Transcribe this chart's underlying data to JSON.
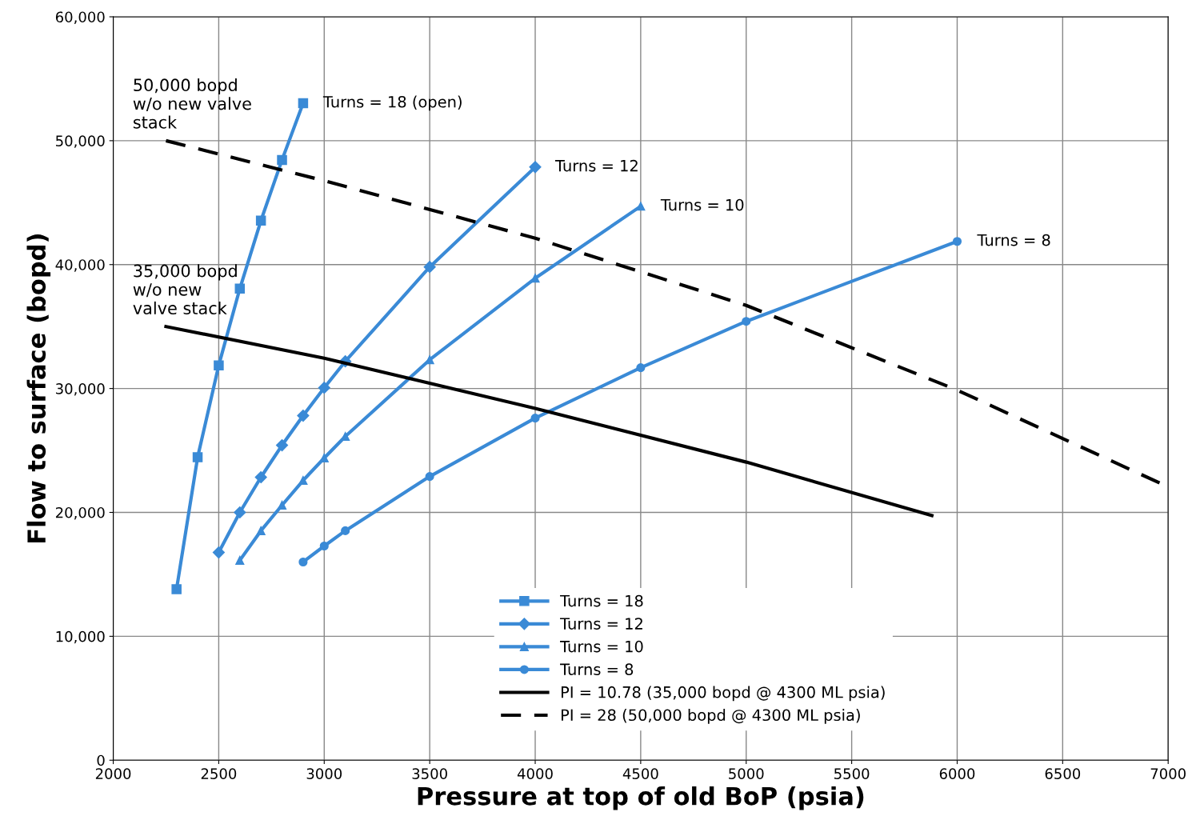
{
  "chart_data": {
    "type": "line",
    "xlabel": "Pressure at top of old BoP (psia)",
    "ylabel": "Flow to surface (bopd)",
    "xlim": [
      2000,
      7000
    ],
    "xticks": [
      2000,
      2500,
      3000,
      3500,
      4000,
      4500,
      5000,
      5500,
      6000,
      6500,
      7000
    ],
    "ylim": [
      0,
      60000
    ],
    "yticks": [
      0,
      {
        "value": 10000,
        "label": "10,000"
      },
      {
        "value": 20000,
        "label": "20,000"
      },
      {
        "value": 30000,
        "label": "30,000"
      },
      {
        "value": 40000,
        "label": "40,000"
      },
      {
        "value": 50000,
        "label": "50,000"
      },
      {
        "value": 60000,
        "label": "60,000"
      }
    ],
    "grid": true,
    "legend": "bottom",
    "series": [
      {
        "name": "Turns = 18",
        "color": "#3a8ad6",
        "marker": "square",
        "line_style": "solid",
        "x": [
          2300,
          2400,
          2500,
          2600,
          2700,
          2800,
          2900
        ],
        "values": [
          13800,
          24450,
          31870,
          38060,
          43550,
          48450,
          53030
        ]
      },
      {
        "name": "Turns = 12",
        "color": "#3a8ad6",
        "marker": "diamond",
        "line_style": "solid",
        "x": [
          2500,
          2600,
          2700,
          2800,
          2900,
          3000,
          3100,
          3500,
          4000
        ],
        "values": [
          16770,
          20000,
          22840,
          25420,
          27810,
          30060,
          32190,
          39810,
          47870
        ]
      },
      {
        "name": "Turns = 10",
        "color": "#3a8ad6",
        "marker": "triangle",
        "line_style": "solid",
        "x": [
          2600,
          2700,
          2800,
          2900,
          3000,
          3100,
          3500,
          4000,
          4500
        ],
        "values": [
          16130,
          18520,
          20580,
          22580,
          24390,
          26130,
          32320,
          38900,
          44710
        ]
      },
      {
        "name": "Turns = 8",
        "color": "#3a8ad6",
        "marker": "circle",
        "line_style": "solid",
        "x": [
          2900,
          3000,
          3100,
          3500,
          4000,
          4500,
          5000,
          6000
        ],
        "values": [
          16000,
          17290,
          18520,
          22900,
          27610,
          31680,
          35420,
          41870
        ]
      },
      {
        "name": "PI = 10.78 (35,000 bopd @ 4300 ML psia)",
        "color": "#000000",
        "marker": "none",
        "line_style": "solid",
        "x": [
          2250,
          3000,
          4000,
          5000,
          5880
        ],
        "values": [
          35000,
          32450,
          28400,
          24060,
          19740
        ]
      },
      {
        "name": "PI = 28 (50,000 bopd @ 4300 ML psia)",
        "color": "#000000",
        "marker": "none",
        "line_style": "dashed",
        "x": [
          2250,
          3000,
          4000,
          5000,
          6000,
          7000
        ],
        "values": [
          50000,
          46770,
          42130,
          36710,
          29870,
          22060
        ]
      }
    ],
    "annotations": [
      {
        "text": "50,000 bopd\nw/o new valve\nstack",
        "x": 2250,
        "y": 50000
      },
      {
        "text": "35,000 bopd\nw/o new\nvalve stack",
        "x": 2250,
        "y": 35000
      },
      {
        "text": "Turns = 18 (open)",
        "x": 2900,
        "y": 53030
      },
      {
        "text": "Turns = 12",
        "x": 4000,
        "y": 47870
      },
      {
        "text": "Turns = 10",
        "x": 4500,
        "y": 44710
      },
      {
        "text": "Turns = 8",
        "x": 6000,
        "y": 41870
      }
    ]
  }
}
